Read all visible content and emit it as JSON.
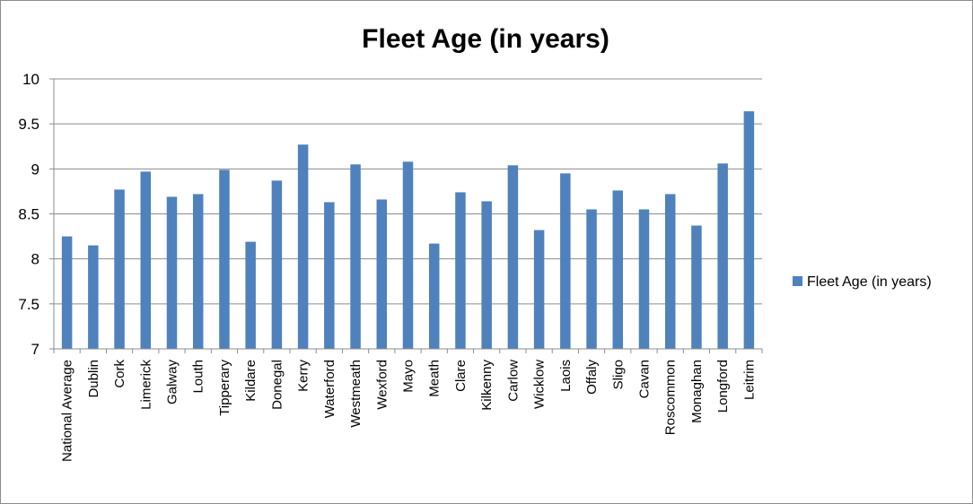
{
  "chart_data": {
    "type": "bar",
    "title": "Fleet Age (in years)",
    "xlabel": "",
    "ylabel": "",
    "ylim": [
      7,
      10
    ],
    "yticks": [
      "7",
      "7.5",
      "8",
      "8.5",
      "9",
      "9.5",
      "10"
    ],
    "grid": true,
    "legend_position": "right",
    "bar_color": "#4f81bd",
    "categories": [
      "National Average",
      "Dublin",
      "Cork",
      "Limerick",
      "Galway",
      "Louth",
      "Tipperary",
      "Kildare",
      "Donegal",
      "Kerry",
      "Waterford",
      "Westmeath",
      "Wexford",
      "Mayo",
      "Meath",
      "Clare",
      "Kilkenny",
      "Carlow",
      "Wicklow",
      "Laois",
      "Offaly",
      "Sligo",
      "Cavan",
      "Roscommon",
      "Monaghan",
      "Longford",
      "Leitrim"
    ],
    "series": [
      {
        "name": "Fleet Age (in years)",
        "values": [
          8.25,
          8.15,
          8.77,
          8.97,
          8.69,
          8.72,
          8.99,
          8.19,
          8.87,
          9.27,
          8.63,
          9.05,
          8.66,
          9.08,
          8.17,
          8.74,
          8.64,
          9.04,
          8.32,
          8.95,
          8.55,
          8.76,
          8.55,
          8.72,
          8.37,
          9.06,
          9.64
        ]
      }
    ]
  }
}
